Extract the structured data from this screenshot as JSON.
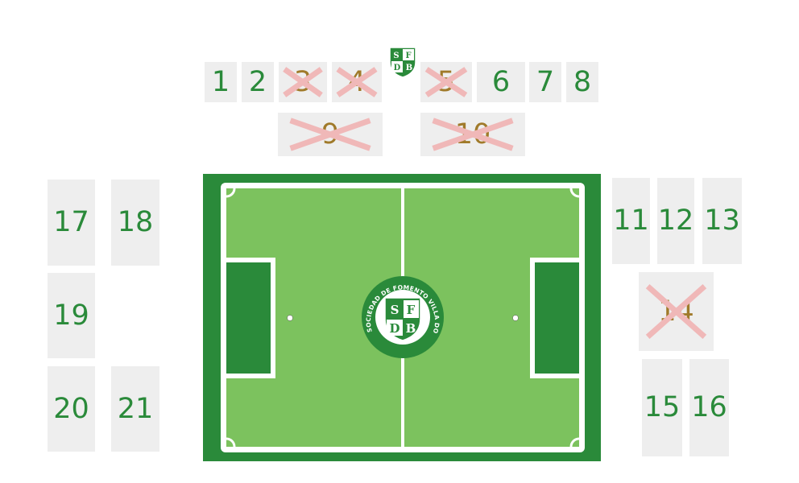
{
  "colors": {
    "label": "#2a8a3a",
    "taken_label": "#a07a2a",
    "cross": "#f0b8b8",
    "tile": "#eeeeee",
    "pitch_outer": "#2a8a3a",
    "pitch_grass": "#7cc25e",
    "pitch_box": "#2a8a3a"
  },
  "logo": {
    "name": "club-crest",
    "letters": [
      "S",
      "F",
      "D",
      "B"
    ],
    "ring_text": "SOCIEDAD DE FOMENTO VILLA DON BOSCO"
  },
  "spots": [
    {
      "id": "1",
      "label": "1",
      "taken": false
    },
    {
      "id": "2",
      "label": "2",
      "taken": false
    },
    {
      "id": "3",
      "label": "3",
      "taken": true
    },
    {
      "id": "4",
      "label": "4",
      "taken": true
    },
    {
      "id": "5",
      "label": "5",
      "taken": true
    },
    {
      "id": "6",
      "label": "6",
      "taken": false
    },
    {
      "id": "7",
      "label": "7",
      "taken": false
    },
    {
      "id": "8",
      "label": "8",
      "taken": false
    },
    {
      "id": "9",
      "label": "9",
      "taken": true
    },
    {
      "id": "10",
      "label": "10",
      "taken": true
    },
    {
      "id": "11",
      "label": "11",
      "taken": false
    },
    {
      "id": "12",
      "label": "12",
      "taken": false
    },
    {
      "id": "13",
      "label": "13",
      "taken": false
    },
    {
      "id": "14",
      "label": "14",
      "taken": true
    },
    {
      "id": "15",
      "label": "15",
      "taken": false
    },
    {
      "id": "16",
      "label": "16",
      "taken": false
    },
    {
      "id": "17",
      "label": "17",
      "taken": false
    },
    {
      "id": "18",
      "label": "18",
      "taken": false
    },
    {
      "id": "19",
      "label": "19",
      "taken": false
    },
    {
      "id": "20",
      "label": "20",
      "taken": false
    },
    {
      "id": "21",
      "label": "21",
      "taken": false
    }
  ]
}
